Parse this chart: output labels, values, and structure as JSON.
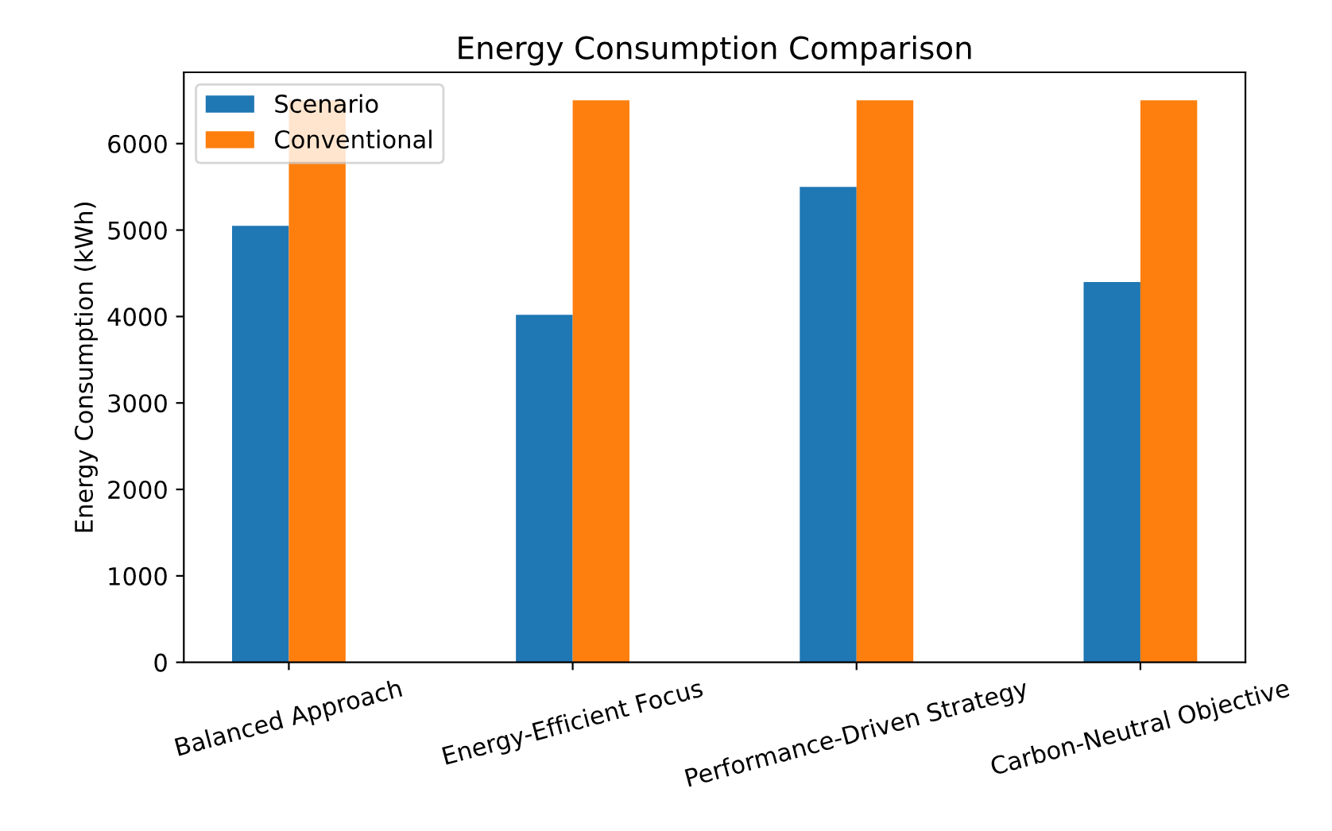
{
  "chart_data": {
    "type": "bar",
    "title": "Energy Consumption Comparison",
    "ylabel": "Energy Consumption (kWh)",
    "categories": [
      "Balanced Approach",
      "Energy-Efficient Focus",
      "Performance-Driven Strategy",
      "Carbon-Neutral Objective"
    ],
    "series": [
      {
        "name": "Scenario",
        "color": "#1f77b4",
        "values": [
          5050,
          4020,
          5500,
          4400
        ]
      },
      {
        "name": "Conventional",
        "color": "#ff7f0e",
        "values": [
          6500,
          6500,
          6500,
          6500
        ]
      }
    ],
    "ylim": [
      0,
      6825
    ],
    "yticks": [
      0,
      1000,
      2000,
      3000,
      4000,
      5000,
      6000
    ],
    "grid": false,
    "legend": "top left"
  }
}
